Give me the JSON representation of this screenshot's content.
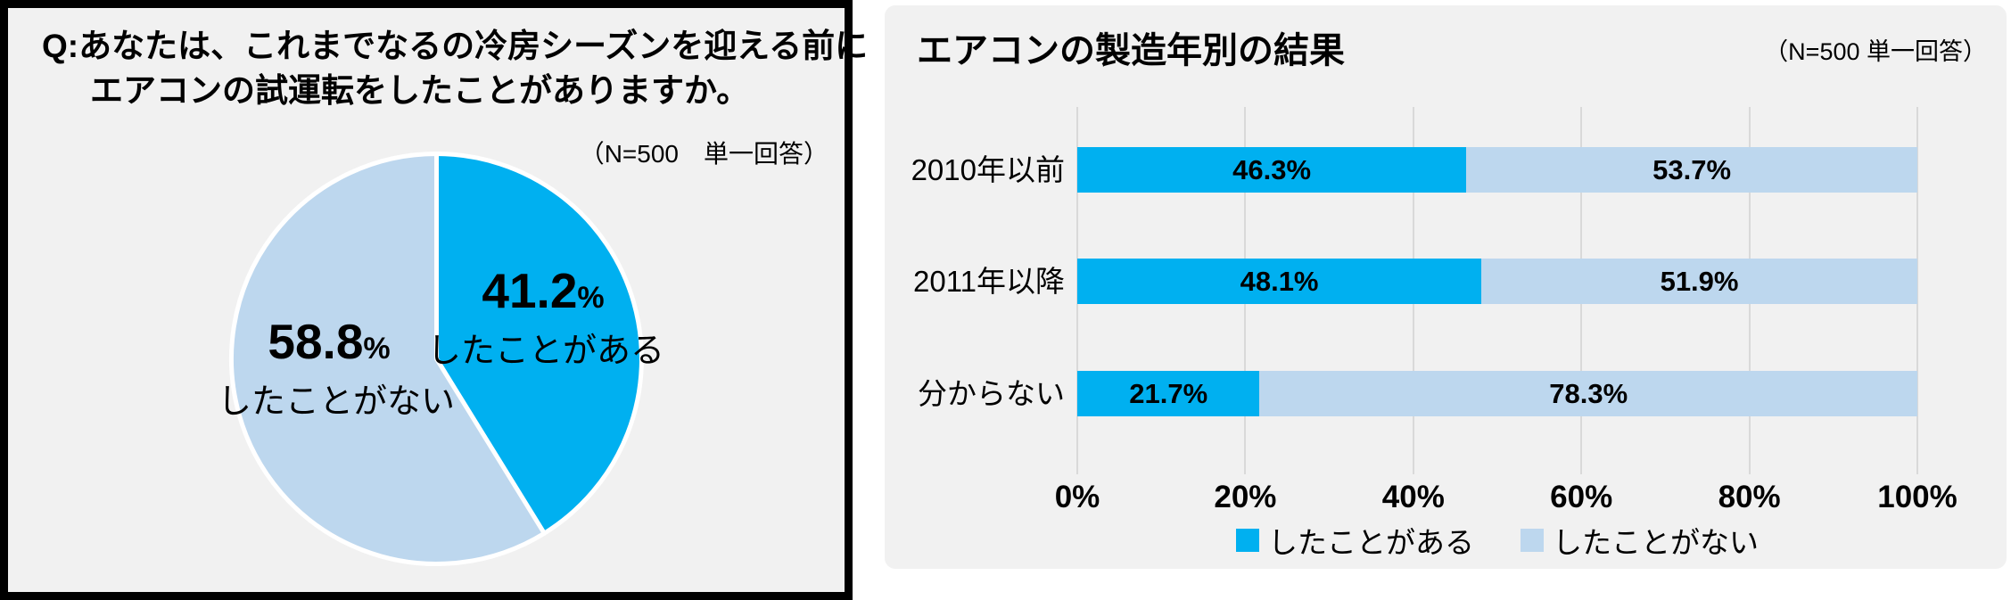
{
  "left_panel": {
    "question_line1": "Q:あなたは、これまでなるの冷房シーズンを迎える前に",
    "question_line2": "エアコンの試運転をしたことがありますか。",
    "note": "（N=500　単一回答）"
  },
  "right_panel": {
    "title": "エアコンの製造年別の結果",
    "note": "（N=500 単一回答）"
  },
  "chart_data": [
    {
      "type": "pie",
      "title": "Q:あなたは、これまでなるの冷房シーズンを迎える前にエアコンの試運転をしたことがありますか。",
      "note": "（N=500　単一回答）",
      "unit": "%",
      "start_angle": "top",
      "direction": "clockwise",
      "slices": [
        {
          "label": "したことがある",
          "value": 41.2,
          "color": "#00B0F0"
        },
        {
          "label": "したことがない",
          "value": 58.8,
          "color": "#BDD7EE"
        }
      ]
    },
    {
      "type": "bar",
      "variant": "horizontal-stacked",
      "title": "エアコンの製造年別の結果",
      "note": "（N=500 単一回答）",
      "unit": "%",
      "categories": [
        "2010年以前",
        "2011年以降",
        "分からない"
      ],
      "series": [
        {
          "name": "したことがある",
          "color": "#00B0F0",
          "values": [
            46.3,
            48.1,
            21.7
          ]
        },
        {
          "name": "したことがない",
          "color": "#BDD7EE",
          "values": [
            53.7,
            51.9,
            78.3
          ]
        }
      ],
      "x_ticks": [
        "0%",
        "20%",
        "40%",
        "60%",
        "80%",
        "100%"
      ],
      "xlim": [
        0,
        100
      ],
      "grid": true,
      "legend_position": "bottom"
    }
  ],
  "colors": {
    "series_have": "#00B0F0",
    "series_havenot": "#BDD7EE",
    "panel_bg": "#F1F1F1",
    "gridline": "#D9D9D9",
    "left_panel_border": "#000000"
  }
}
